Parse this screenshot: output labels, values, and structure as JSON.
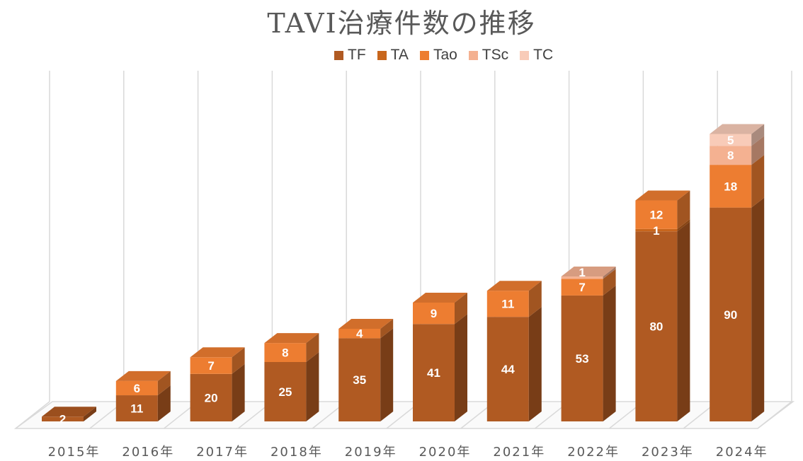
{
  "chart_data": {
    "type": "bar",
    "stacked": true,
    "style": "3d",
    "title": "TAVI治療件数の推移",
    "categories": [
      "2015年",
      "2016年",
      "2017年",
      "2018年",
      "2019年",
      "2020年",
      "2021年",
      "2022年",
      "2023年",
      "2024年"
    ],
    "series": [
      {
        "name": "TF",
        "color": "#B05A22",
        "values": [
          2,
          11,
          20,
          25,
          35,
          41,
          44,
          53,
          80,
          90
        ]
      },
      {
        "name": "TA",
        "color": "#C8661C",
        "values": [
          null,
          null,
          null,
          null,
          null,
          null,
          null,
          null,
          1,
          null
        ]
      },
      {
        "name": "Tao",
        "color": "#ED7D31",
        "values": [
          null,
          6,
          7,
          8,
          4,
          9,
          11,
          7,
          12,
          18
        ]
      },
      {
        "name": "TSc",
        "color": "#F4B191",
        "values": [
          null,
          null,
          null,
          null,
          null,
          null,
          null,
          1,
          null,
          8
        ]
      },
      {
        "name": "TC",
        "color": "#F8CBB8",
        "values": [
          null,
          null,
          null,
          null,
          null,
          null,
          null,
          null,
          null,
          5
        ]
      }
    ],
    "legend_position": "top",
    "gridlines": "vertical",
    "ylim": [
      0,
      125
    ],
    "xlabel": "",
    "ylabel": ""
  }
}
